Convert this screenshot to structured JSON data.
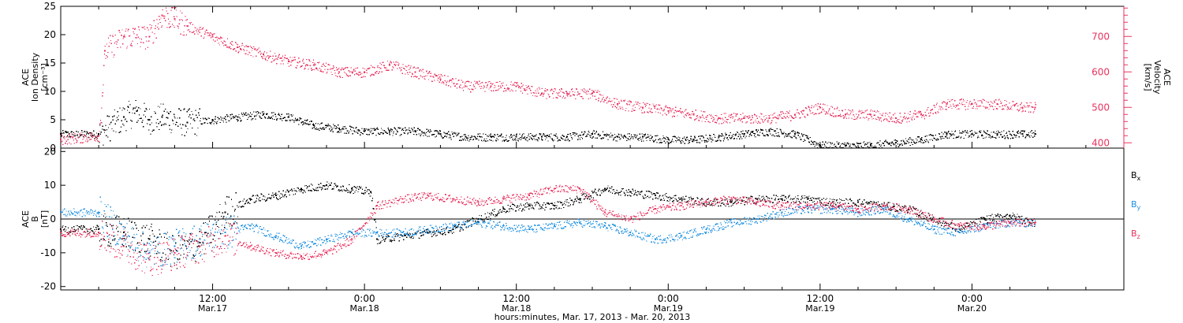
{
  "chart_data": [
    {
      "type": "scatter",
      "panel": "top",
      "ylabel_left": [
        "ACE",
        "Ion Density",
        "[cm⁻³]"
      ],
      "ylabel_right": [
        "ACE",
        "Velocity",
        "[km/s]"
      ],
      "ylim": [
        0,
        25
      ],
      "y_ticks": [
        "0",
        "5",
        "10",
        "15",
        "20",
        "25"
      ],
      "ylim_right": [
        385,
        785
      ],
      "y_ticks_right": [
        "400",
        "500",
        "600",
        "700"
      ],
      "colors": {
        "density": "#000000",
        "velocity": "#e8325f"
      },
      "series": [
        {
          "name": "",
          "axis": "left",
          "color": "#000000",
          "x_hours": [
            0,
            3,
            5,
            6,
            7,
            8,
            10,
            12,
            14,
            16,
            18,
            20,
            22,
            24,
            26,
            28,
            30,
            32,
            34,
            36,
            38,
            40,
            42,
            44,
            46,
            48,
            50,
            52,
            54,
            56,
            58,
            60,
            62,
            64,
            66,
            68,
            70,
            72,
            74,
            76,
            77
          ],
          "values": [
            2.5,
            2.5,
            5.5,
            6.5,
            5,
            5.5,
            4.5,
            5,
            5.5,
            6,
            5.5,
            4,
            3.5,
            3,
            3,
            3,
            2.5,
            2,
            2,
            2,
            2,
            2,
            2.5,
            2,
            2,
            1.5,
            1.5,
            2,
            2.5,
            3,
            2.5,
            0.5,
            0.5,
            0.5,
            1,
            1.5,
            2.5,
            2.5,
            2.5,
            2.5,
            2.5
          ]
        },
        {
          "name": "",
          "axis": "right",
          "color": "#e8325f",
          "x_hours": [
            0,
            3,
            3.5,
            5,
            7,
            8,
            9,
            10,
            12,
            14,
            16,
            18,
            20,
            22,
            24,
            26,
            28,
            30,
            32,
            34,
            36,
            38,
            40,
            42,
            44,
            46,
            48,
            50,
            52,
            54,
            56,
            58,
            60,
            62,
            64,
            66,
            68,
            70,
            72,
            74,
            76,
            77
          ],
          "values": [
            410,
            420,
            660,
            700,
            700,
            760,
            750,
            730,
            700,
            670,
            650,
            630,
            620,
            600,
            600,
            620,
            600,
            580,
            560,
            560,
            560,
            540,
            540,
            540,
            510,
            500,
            490,
            480,
            470,
            470,
            470,
            480,
            500,
            480,
            480,
            470,
            480,
            510,
            510,
            510,
            500,
            500
          ]
        }
      ]
    },
    {
      "type": "scatter",
      "panel": "bottom",
      "ylabel_left": [
        "ACE",
        "B",
        "[nT]"
      ],
      "ylim": [
        -21,
        21
      ],
      "y_ticks": [
        "-20",
        "-10",
        "0",
        "10",
        "20"
      ],
      "zero_line": true,
      "legend": [
        {
          "label": "B",
          "sub": "x",
          "color": "#000000"
        },
        {
          "label": "B",
          "sub": "y",
          "color": "#1b8fe0"
        },
        {
          "label": "B",
          "sub": "z",
          "color": "#e8325f"
        }
      ],
      "series": [
        {
          "name": "Bx",
          "color": "#000000",
          "x_hours": [
            0,
            3,
            5,
            7,
            9,
            11,
            13,
            15,
            17,
            19,
            21,
            23,
            24.5,
            25,
            27,
            29,
            31,
            33,
            35,
            37,
            39,
            41,
            43,
            45,
            47,
            49,
            51,
            53,
            55,
            57,
            59,
            61,
            63,
            65,
            67,
            69,
            71,
            73,
            75,
            77
          ],
          "values": [
            -3,
            -3,
            -4,
            -6,
            -10,
            -7,
            2,
            6,
            7,
            9,
            10,
            9,
            8,
            -6,
            -5,
            -4,
            -3,
            0,
            3,
            4,
            4,
            6,
            9,
            8,
            7,
            6,
            5,
            5,
            6,
            6,
            6,
            5,
            5,
            4,
            3,
            0,
            -3,
            0,
            1,
            -1
          ]
        },
        {
          "name": "By",
          "color": "#1b8fe0",
          "x_hours": [
            0,
            3,
            5,
            7,
            9,
            11,
            13,
            15,
            17,
            19,
            21,
            23,
            25,
            27,
            29,
            31,
            33,
            35,
            37,
            39,
            41,
            43,
            45,
            47,
            49,
            51,
            53,
            55,
            57,
            59,
            61,
            63,
            65,
            67,
            69,
            71,
            73,
            75,
            77
          ],
          "values": [
            2,
            2,
            -5,
            -10,
            -8,
            -6,
            -4,
            -2,
            -5,
            -8,
            -6,
            -4,
            -4,
            -4,
            -3,
            -2,
            -1,
            -2,
            -3,
            -2,
            -1,
            -2,
            -4,
            -6,
            -5,
            -3,
            -1,
            0,
            2,
            3,
            3,
            2,
            3,
            0,
            -3,
            -4,
            -2,
            -1,
            -1
          ]
        },
        {
          "name": "Bz",
          "color": "#e8325f",
          "x_hours": [
            0,
            3,
            5,
            7,
            9,
            11,
            13,
            15,
            17,
            19,
            21,
            23,
            25,
            27,
            29,
            31,
            33,
            35,
            37,
            39,
            41,
            43,
            45,
            47,
            49,
            51,
            53,
            55,
            57,
            59,
            61,
            63,
            65,
            67,
            69,
            71,
            73,
            75,
            77
          ],
          "values": [
            -4,
            -4,
            -8,
            -12,
            -10,
            -8,
            -5,
            -8,
            -10,
            -11,
            -10,
            -6,
            4,
            6,
            7,
            6,
            5,
            6,
            7,
            9,
            9,
            2,
            0,
            3,
            4,
            5,
            6,
            5,
            4,
            4,
            4,
            3,
            4,
            3,
            0,
            -2,
            -2,
            -1,
            -1
          ]
        }
      ]
    }
  ],
  "x_axis": {
    "labels_line1": [
      "12:00",
      "0:00",
      "12:00",
      "0:00",
      "12:00",
      "0:00"
    ],
    "labels_line2": [
      "Mar.17",
      "Mar.18",
      "Mar.18",
      "Mar.19",
      "Mar.19",
      "Mar.20"
    ],
    "label_hours": [
      12,
      24,
      36,
      48,
      60,
      72
    ],
    "xlim_hours": [
      0,
      84
    ],
    "caption": "hours:minutes, Mar. 17, 2013 - Mar. 20, 2013"
  }
}
